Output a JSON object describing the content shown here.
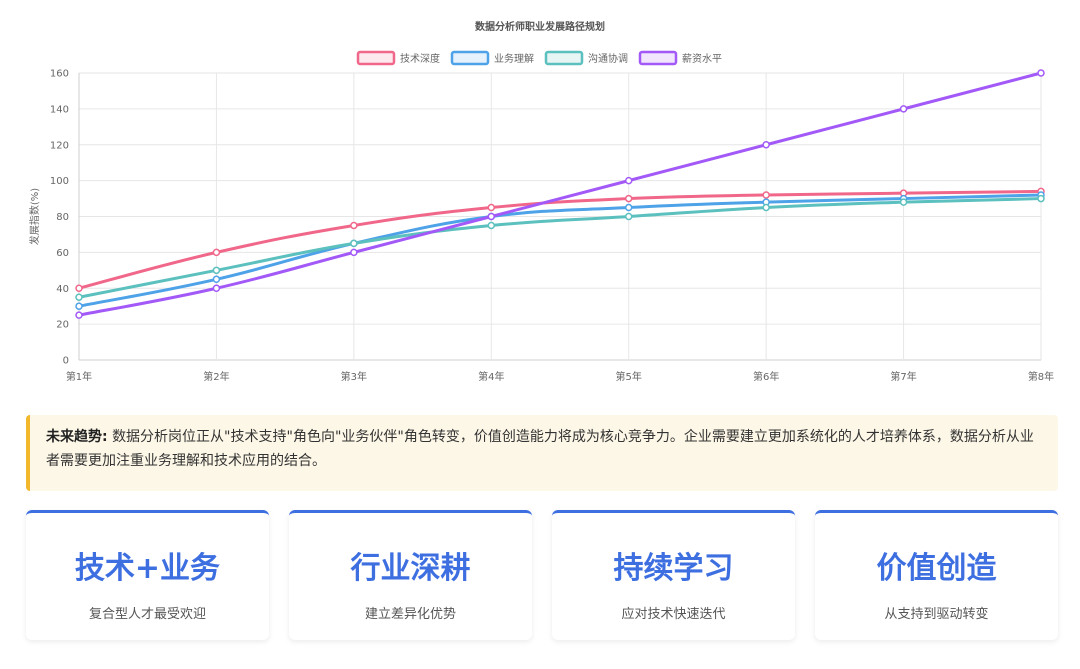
{
  "chart_data": {
    "type": "line",
    "title": "数据分析师职业发展路径规划",
    "ylabel": "发展指数(%)",
    "xlabel": "",
    "categories": [
      "第1年",
      "第2年",
      "第3年",
      "第4年",
      "第5年",
      "第6年",
      "第7年",
      "第8年"
    ],
    "ylim": [
      0,
      160
    ],
    "yticks": [
      0,
      20,
      40,
      60,
      80,
      100,
      120,
      140,
      160
    ],
    "grid": true,
    "legend_position": "top",
    "series": [
      {
        "name": "技术深度",
        "color": "#f0678a",
        "values": [
          40,
          60,
          75,
          85,
          90,
          92,
          93,
          94
        ]
      },
      {
        "name": "业务理解",
        "color": "#4ea2e8",
        "values": [
          30,
          45,
          65,
          80,
          85,
          88,
          90,
          92
        ]
      },
      {
        "name": "沟通协调",
        "color": "#5bc0be",
        "values": [
          35,
          50,
          65,
          75,
          80,
          85,
          88,
          90
        ]
      },
      {
        "name": "薪资水平",
        "color": "#a259f7",
        "values": [
          25,
          40,
          60,
          80,
          100,
          120,
          140,
          160
        ]
      }
    ]
  },
  "trend": {
    "label": "未来趋势:",
    "text": "数据分析岗位正从\"技术支持\"角色向\"业务伙伴\"角色转变，价值创造能力将成为核心竞争力。企业需要建立更加系统化的人才培养体系，数据分析从业者需要更加注重业务理解和技术应用的结合。"
  },
  "cards": [
    {
      "title": "技术+业务",
      "subtitle": "复合型人才最受欢迎"
    },
    {
      "title": "行业深耕",
      "subtitle": "建立差异化优势"
    },
    {
      "title": "持续学习",
      "subtitle": "应对技术快速迭代"
    },
    {
      "title": "价值创造",
      "subtitle": "从支持到驱动转变"
    }
  ],
  "accent_color": "#3d6fe0",
  "trend_border_color": "#f2b72a"
}
